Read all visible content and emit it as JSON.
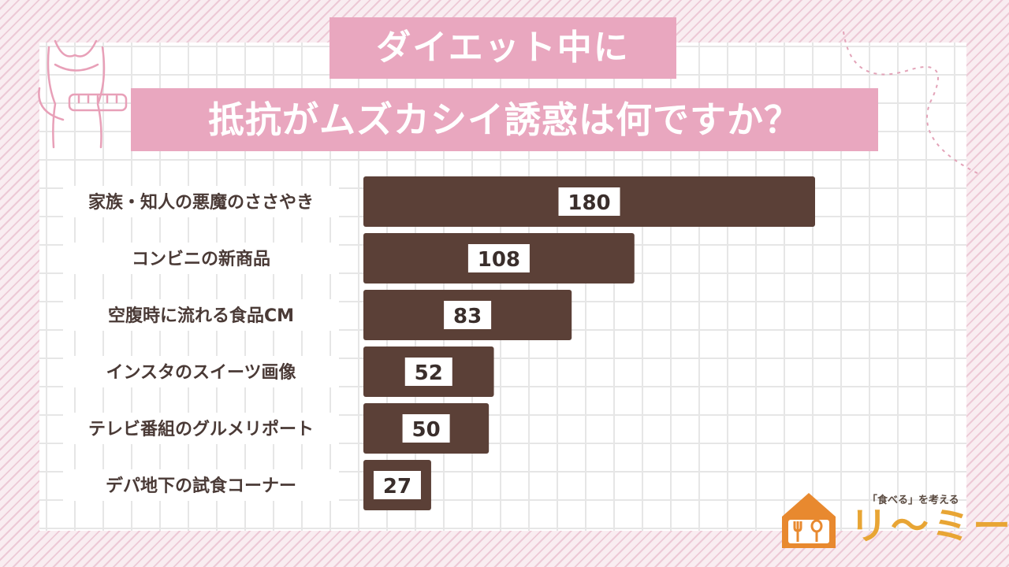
{
  "title": {
    "line1": "ダイエット中に",
    "line2": "抵抗がムズカシイ誘惑は何ですか？"
  },
  "chart_data": {
    "type": "bar",
    "orientation": "horizontal",
    "categories": [
      "家族・知人の悪魔のささやき",
      "コンビニの新商品",
      "空腹時に流れる食品CM",
      "インスタのスイーツ画像",
      "テレビ番組のグルメリポート",
      "デパ地下の試食コーナー"
    ],
    "values": [
      180,
      108,
      83,
      52,
      50,
      27
    ],
    "xlim": [
      0,
      180
    ],
    "grid": true,
    "data_labels": true
  },
  "logo": {
    "tagline": "「食べる」を考える",
    "name": "リ〜ミー"
  },
  "colors": {
    "bar": "#5b4037",
    "title_bg": "#e9a7bf",
    "logo_accent": "#e8a534",
    "house": "#e8892f"
  },
  "icons": [
    "woman-measuring-tape-icon",
    "house-fork-spoon-icon"
  ]
}
